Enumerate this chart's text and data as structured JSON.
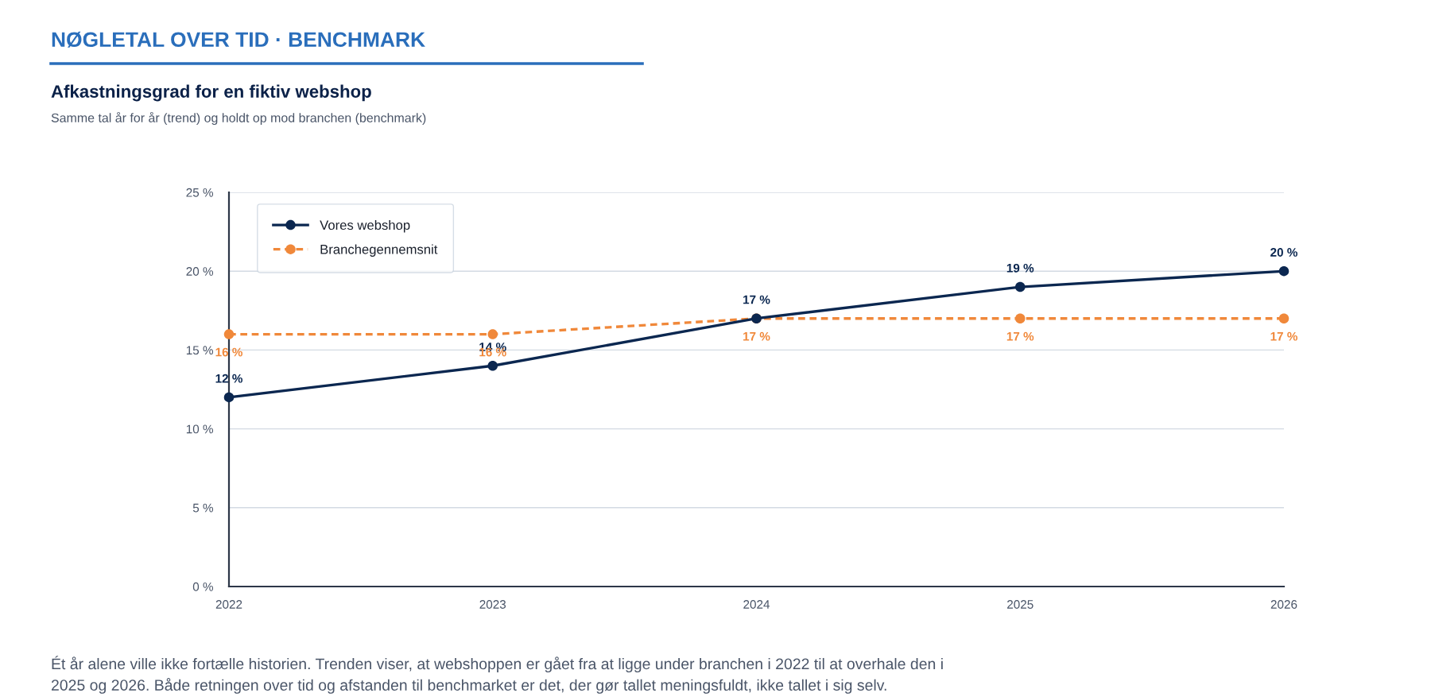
{
  "chart_data": {
    "type": "line",
    "title": "Afkastningsgrad for en fiktiv webshop",
    "subtitle": "Samme tal år for år (trend) og holdt op mod branchen (benchmark)",
    "annotations": [
      "NØGLETAL OVER TID · BENCHMARK",
      "Ét år alene ville ikke fortælle historien. Trenden viser, at webshoppen er gået fra at ligge under branchen i 2022 til at overhale den i\n2025 og 2026. Både retningen over tid og afstanden til benchmarket er det, der gør tallet meningsfuldt, ikke tallet i sig selv."
    ],
    "categories": [
      "2022",
      "2023",
      "2024",
      "2025",
      "2026"
    ],
    "series": [
      {
        "name": "Vores webshop",
        "color": "#0b2750",
        "line_style": "solid",
        "values": [
          12,
          14,
          17,
          19,
          20
        ],
        "value_labels": [
          "12 %",
          "14 %",
          "17 %",
          "19 %",
          "20 %"
        ]
      },
      {
        "name": "Branchegennemsnit",
        "color": "#f0883a",
        "line_style": "dashed",
        "values": [
          16,
          16,
          17,
          17,
          17
        ],
        "value_labels": [
          "16 %",
          "16 %",
          "17 %",
          "17 %",
          "17 %"
        ]
      }
    ],
    "ylim": [
      0,
      25
    ],
    "yticks": [
      {
        "value": 0,
        "label": "0 %"
      },
      {
        "value": 5,
        "label": "5 %"
      },
      {
        "value": 10,
        "label": "10 %"
      },
      {
        "value": 15,
        "label": "15 %"
      },
      {
        "value": 20,
        "label": "20 %"
      },
      {
        "value": 25,
        "label": "25 %"
      }
    ],
    "grid": "y",
    "legend": "top left",
    "marker": "circle"
  }
}
